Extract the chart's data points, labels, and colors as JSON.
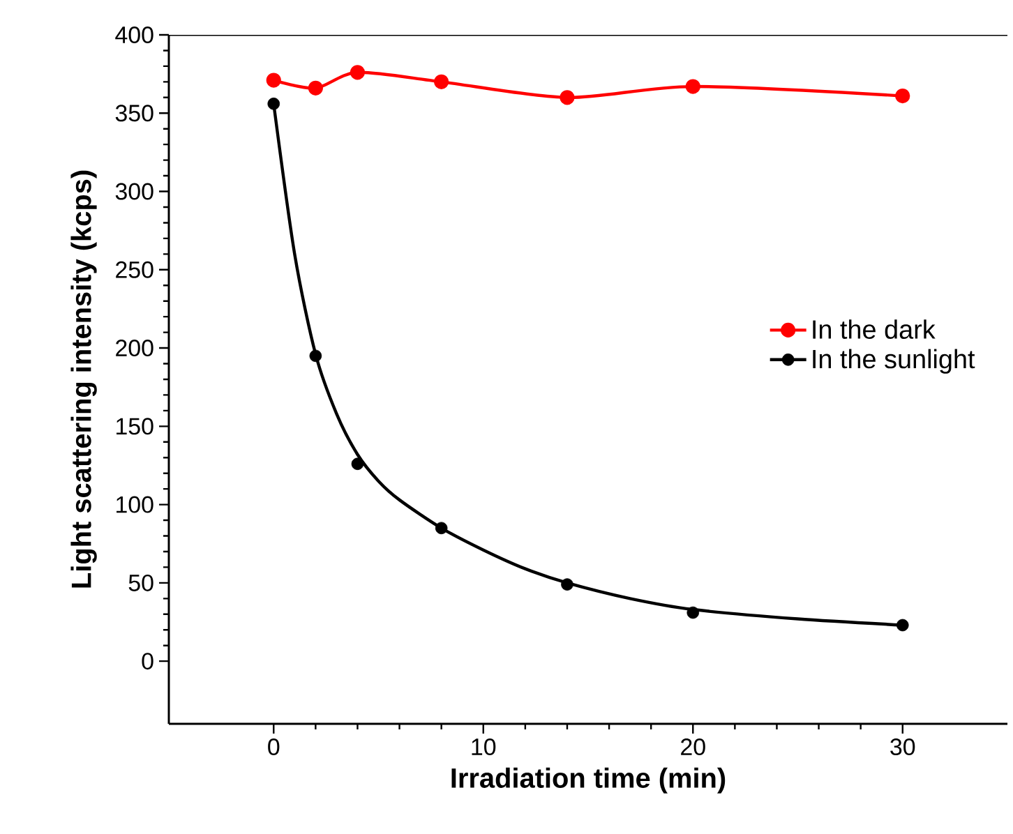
{
  "chart_data": {
    "type": "line",
    "xlabel": "Irradiation time (min)",
    "ylabel": "Light scattering intensity (kcps)",
    "xlim": [
      -5,
      35
    ],
    "ylim": [
      -40,
      400
    ],
    "xticks": [
      0,
      10,
      20,
      30
    ],
    "yticks": [
      0,
      50,
      100,
      150,
      200,
      250,
      300,
      350,
      400
    ],
    "legend": "right",
    "grid": false,
    "series": [
      {
        "name": "In the dark",
        "type": "line",
        "color": "#ff0000",
        "marker": "circle",
        "x": [
          0,
          2,
          4,
          8,
          14,
          20,
          30
        ],
        "values": [
          371,
          366,
          376,
          370,
          360,
          367,
          361
        ]
      },
      {
        "name": "In the sunlight",
        "type": "scatter",
        "color": "#000000",
        "marker": "circle",
        "x": [
          0,
          2,
          4,
          8,
          14,
          20,
          30
        ],
        "values": [
          356,
          195,
          126,
          85,
          49,
          31,
          23
        ]
      },
      {
        "color": "#000000",
        "marker": "none",
        "x": [
          0,
          1,
          2,
          3,
          4,
          5,
          6,
          8,
          10,
          12,
          14,
          17,
          20,
          25,
          30
        ],
        "values": [
          356,
          260,
          196,
          158,
          132,
          115,
          103,
          85,
          71,
          59,
          50,
          40,
          33,
          27,
          23
        ]
      }
    ]
  }
}
